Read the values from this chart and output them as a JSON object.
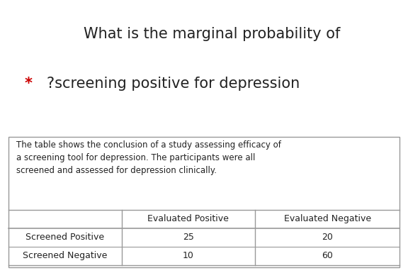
{
  "title_line1": "What is the marginal probability of",
  "title_line2": "?screening positive for depression",
  "star": "* ",
  "description": "The table shows the conclusion of a study assessing efficacy of\na screening tool for depression. The participants were all\nscreened and assessed for depression clinically.",
  "col_headers": [
    "",
    "Evaluated Positive",
    "Evaluated Negative"
  ],
  "row_labels": [
    "Screened Positive",
    "Screened Negative"
  ],
  "table_data": [
    [
      "25",
      "20"
    ],
    [
      "10",
      "60"
    ]
  ],
  "bg_color": "#ffffff",
  "title_color": "#222222",
  "star_color": "#cc0000",
  "desc_color": "#222222",
  "table_text_color": "#222222",
  "border_color": "#999999",
  "title_fontsize": 15,
  "desc_fontsize": 8.5,
  "table_fontsize": 9,
  "fig_width": 5.76,
  "fig_height": 3.85,
  "dpi": 100
}
